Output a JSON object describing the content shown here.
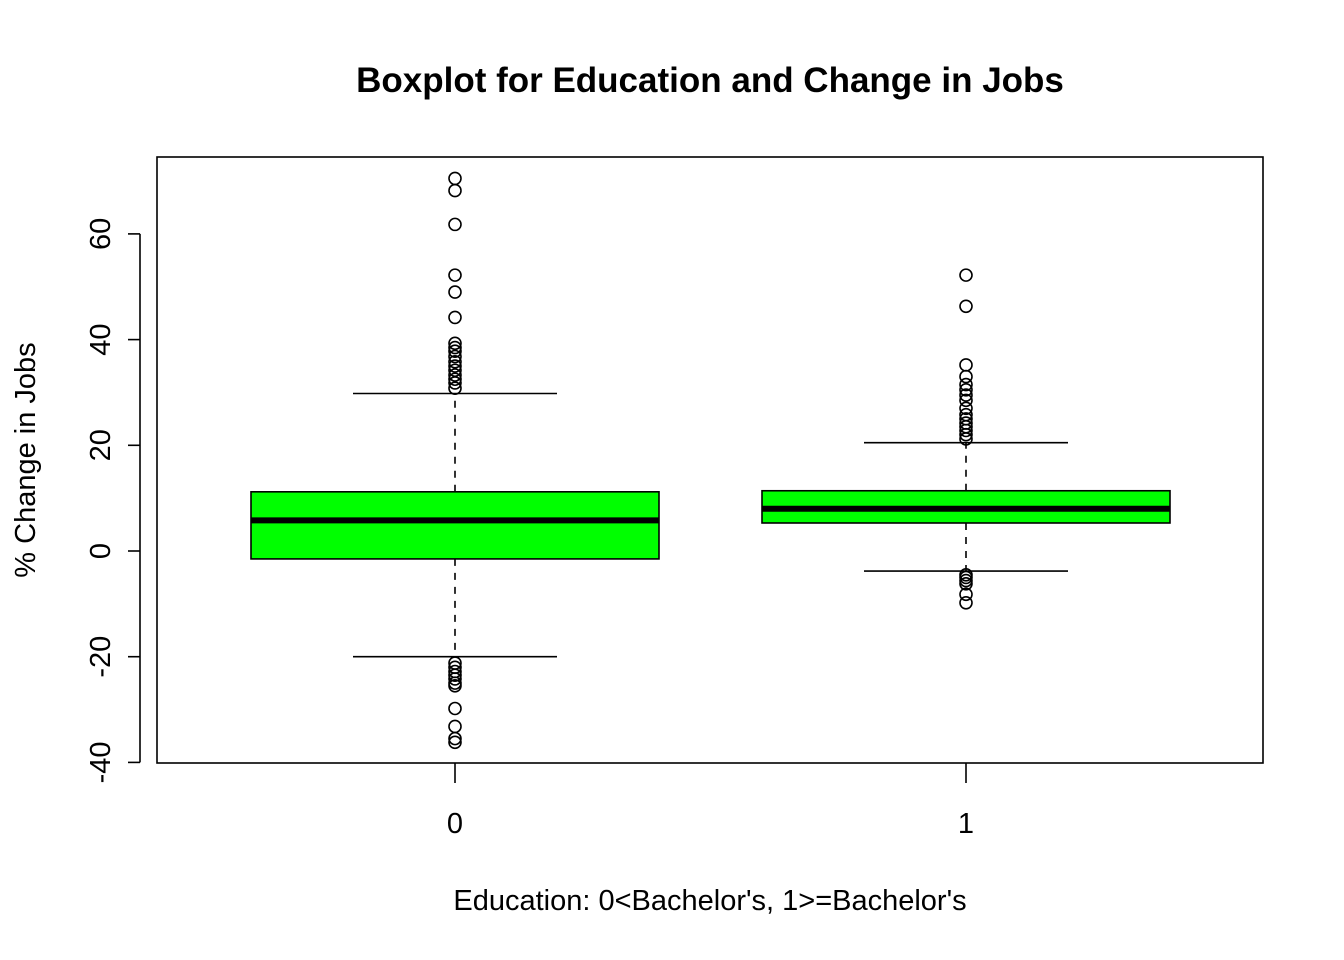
{
  "chart_data": {
    "type": "boxplot",
    "title": "Boxplot for Education and Change in Jobs",
    "xlabel": "Education: 0<Bachelor's, 1>=Bachelor's",
    "ylabel": "% Change in Jobs",
    "categories": [
      "0",
      "1"
    ],
    "ylim": [
      -40,
      70
    ],
    "y_ticks": [
      -40,
      -20,
      0,
      20,
      40,
      60
    ],
    "y_tick_labels": [
      "-40",
      "-20",
      "0",
      "20",
      "40",
      "60"
    ],
    "grid": false,
    "box_color": "#00ff00",
    "boxes": [
      {
        "category": "0",
        "whisker_low": -20,
        "q1": -1.5,
        "median": 5.8,
        "q3": 11.2,
        "whisker_high": 29.8,
        "outliers": [
          70.5,
          68.2,
          61.8,
          52.2,
          49.0,
          44.2,
          39.3,
          38.5,
          37.8,
          36.8,
          35.8,
          35.0,
          34.2,
          33.3,
          32.5,
          31.8,
          30.8,
          -21.2,
          -22.0,
          -22.8,
          -23.5,
          -24.2,
          -25.0,
          -25.5,
          -29.8,
          -33.2,
          -35.5,
          -36.2
        ]
      },
      {
        "category": "1",
        "whisker_low": -3.8,
        "q1": 5.3,
        "median": 8.0,
        "q3": 11.4,
        "whisker_high": 20.5,
        "outliers": [
          52.2,
          46.3,
          35.2,
          33.0,
          31.5,
          30.5,
          29.5,
          28.5,
          27.0,
          25.8,
          25.0,
          24.2,
          23.5,
          22.8,
          22.0,
          21.2,
          -4.5,
          -5.0,
          -5.6,
          -6.2,
          -8.2,
          -9.8
        ]
      }
    ]
  }
}
